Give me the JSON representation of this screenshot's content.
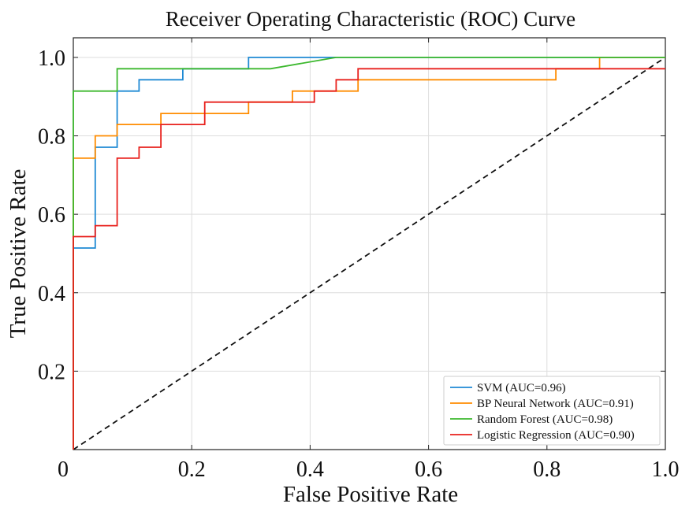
{
  "chart_data": {
    "type": "line",
    "title": "Receiver Operating Characteristic (ROC) Curve",
    "xlabel": "False Positive Rate",
    "ylabel": "True Positive Rate",
    "xlim": [
      0,
      1
    ],
    "ylim": [
      0,
      1.05
    ],
    "grid": true,
    "legend_position": "bottom-right",
    "x_ticks": [
      {
        "value": 0,
        "label": "0"
      },
      {
        "value": 0.2,
        "label": "0.2"
      },
      {
        "value": 0.4,
        "label": "0.4"
      },
      {
        "value": 0.6,
        "label": "0.6"
      },
      {
        "value": 0.8,
        "label": "0.8"
      },
      {
        "value": 1.0,
        "label": "1.0"
      }
    ],
    "y_ticks": [
      {
        "value": 0,
        "label": "0"
      },
      {
        "value": 0.2,
        "label": "0.2"
      },
      {
        "value": 0.4,
        "label": "0.4"
      },
      {
        "value": 0.6,
        "label": "0.6"
      },
      {
        "value": 0.8,
        "label": "0.8"
      },
      {
        "value": 1.0,
        "label": "1.0"
      }
    ],
    "series": [
      {
        "name": "SVM (AUC=0.96)",
        "color": "#1f8ad4",
        "points": [
          [
            0,
            0
          ],
          [
            0,
            0.514
          ],
          [
            0.037,
            0.514
          ],
          [
            0.037,
            0.771
          ],
          [
            0.074,
            0.771
          ],
          [
            0.074,
            0.914
          ],
          [
            0.111,
            0.914
          ],
          [
            0.111,
            0.943
          ],
          [
            0.185,
            0.943
          ],
          [
            0.185,
            0.971
          ],
          [
            0.296,
            0.971
          ],
          [
            0.296,
            1.0
          ],
          [
            1.0,
            1.0
          ]
        ]
      },
      {
        "name": "BP Neural Network (AUC=0.91)",
        "color": "#ff8c00",
        "points": [
          [
            0,
            0
          ],
          [
            0,
            0.743
          ],
          [
            0.037,
            0.743
          ],
          [
            0.037,
            0.8
          ],
          [
            0.074,
            0.8
          ],
          [
            0.074,
            0.829
          ],
          [
            0.148,
            0.829
          ],
          [
            0.148,
            0.857
          ],
          [
            0.296,
            0.857
          ],
          [
            0.296,
            0.886
          ],
          [
            0.37,
            0.886
          ],
          [
            0.37,
            0.914
          ],
          [
            0.481,
            0.914
          ],
          [
            0.481,
            0.943
          ],
          [
            0.815,
            0.943
          ],
          [
            0.815,
            0.971
          ],
          [
            0.889,
            0.971
          ],
          [
            0.889,
            1.0
          ],
          [
            1.0,
            1.0
          ]
        ]
      },
      {
        "name": "Random Forest (AUC=0.98)",
        "color": "#3cb82e",
        "points": [
          [
            0,
            0
          ],
          [
            0,
            0.914
          ],
          [
            0.074,
            0.914
          ],
          [
            0.074,
            0.971
          ],
          [
            0.333,
            0.971
          ],
          [
            0.444,
            1.0
          ],
          [
            1.0,
            1.0
          ]
        ]
      },
      {
        "name": "Logistic Regression (AUC=0.90)",
        "color": "#e8201c",
        "points": [
          [
            0,
            0
          ],
          [
            0,
            0.543
          ],
          [
            0.037,
            0.543
          ],
          [
            0.037,
            0.571
          ],
          [
            0.074,
            0.571
          ],
          [
            0.074,
            0.743
          ],
          [
            0.111,
            0.743
          ],
          [
            0.111,
            0.771
          ],
          [
            0.148,
            0.771
          ],
          [
            0.148,
            0.829
          ],
          [
            0.222,
            0.829
          ],
          [
            0.222,
            0.886
          ],
          [
            0.407,
            0.886
          ],
          [
            0.407,
            0.914
          ],
          [
            0.444,
            0.914
          ],
          [
            0.444,
            0.943
          ],
          [
            0.481,
            0.943
          ],
          [
            0.481,
            0.971
          ],
          [
            1.0,
            0.971
          ]
        ]
      }
    ],
    "reference_line": {
      "style": "dashed",
      "color": "#111111",
      "points": [
        [
          0,
          0
        ],
        [
          1,
          1
        ]
      ]
    }
  }
}
